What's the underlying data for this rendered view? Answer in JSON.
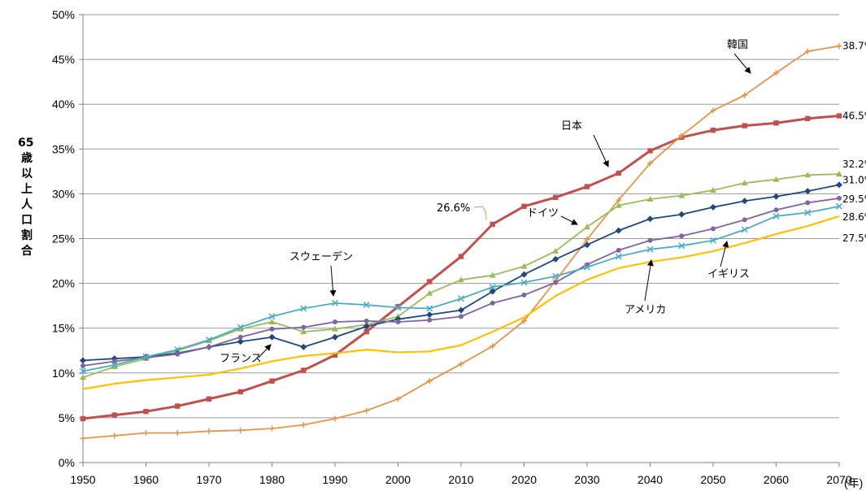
{
  "chart_data": {
    "type": "line",
    "ylabel": "65歳以上人口割合",
    "x_unit": "(年)",
    "x": [
      1950,
      1955,
      1960,
      1965,
      1970,
      1975,
      1980,
      1985,
      1990,
      1995,
      2000,
      2005,
      2010,
      2015,
      2020,
      2025,
      2030,
      2035,
      2040,
      2045,
      2050,
      2055,
      2060,
      2065,
      2070
    ],
    "x_ticks": [
      "1950",
      "1960",
      "1970",
      "1980",
      "1990",
      "2000",
      "2010",
      "2020",
      "2030",
      "2040",
      "2050",
      "2060",
      "2070"
    ],
    "y_ticks": [
      "0%",
      "5%",
      "10%",
      "15%",
      "20%",
      "25%",
      "30%",
      "35%",
      "40%",
      "45%",
      "50%"
    ],
    "ylim": [
      0,
      50
    ],
    "grid": true,
    "series": [
      {
        "name": "日本",
        "color": "#c0504d",
        "marker": "square",
        "values": [
          4.9,
          5.3,
          5.7,
          6.3,
          7.1,
          7.9,
          9.1,
          10.3,
          12.0,
          14.6,
          17.4,
          20.2,
          23.0,
          26.6,
          28.6,
          29.6,
          30.8,
          32.3,
          34.8,
          36.3,
          37.1,
          37.6,
          37.9,
          38.4,
          38.7
        ]
      },
      {
        "name": "韓国",
        "color": "#e5954a",
        "marker": "plus",
        "values": [
          2.7,
          3.0,
          3.3,
          3.3,
          3.5,
          3.6,
          3.8,
          4.2,
          4.9,
          5.8,
          7.1,
          9.1,
          11.0,
          13.0,
          15.8,
          20.3,
          24.9,
          29.3,
          33.4,
          36.5,
          39.3,
          41.0,
          43.5,
          45.9,
          46.5
        ]
      },
      {
        "name": "ドイツ",
        "color": "#9bbb59",
        "marker": "triangle",
        "values": [
          9.5,
          10.7,
          11.6,
          12.5,
          13.6,
          14.9,
          15.7,
          14.6,
          14.9,
          15.4,
          16.3,
          18.9,
          20.4,
          20.9,
          21.9,
          23.6,
          26.3,
          28.7,
          29.4,
          29.8,
          30.4,
          31.2,
          31.6,
          32.1,
          32.2
        ]
      },
      {
        "name": "",
        "color": "#1f497d",
        "marker": "diamond",
        "values": [
          11.4,
          11.6,
          11.8,
          12.2,
          12.9,
          13.5,
          14.0,
          12.9,
          14.0,
          15.2,
          16.0,
          16.5,
          17.0,
          19.1,
          21.0,
          22.7,
          24.3,
          25.9,
          27.2,
          27.7,
          28.5,
          29.2,
          29.7,
          30.3,
          31.0
        ]
      },
      {
        "name": "",
        "color": "#8064a2",
        "marker": "circle",
        "values": [
          10.8,
          11.3,
          11.7,
          12.1,
          12.9,
          14.0,
          14.9,
          15.1,
          15.7,
          15.8,
          15.7,
          15.9,
          16.3,
          17.8,
          18.7,
          20.1,
          22.1,
          23.7,
          24.8,
          25.3,
          26.1,
          27.1,
          28.2,
          29.0,
          29.5
        ]
      },
      {
        "name": "スウェーデン",
        "color": "#4bacc6",
        "marker": "x",
        "values": [
          10.2,
          10.9,
          11.8,
          12.6,
          13.7,
          15.1,
          16.3,
          17.2,
          17.8,
          17.6,
          17.3,
          17.2,
          18.3,
          19.6,
          20.1,
          20.8,
          21.8,
          23.0,
          23.8,
          24.2,
          24.8,
          26.0,
          27.5,
          27.9,
          28.6
        ]
      },
      {
        "name": "アメリカ",
        "color": "#ffc000",
        "marker": "none",
        "values": [
          8.2,
          8.8,
          9.2,
          9.5,
          9.8,
          10.5,
          11.3,
          11.9,
          12.2,
          12.6,
          12.3,
          12.4,
          13.1,
          14.6,
          16.2,
          18.6,
          20.4,
          21.7,
          22.4,
          22.9,
          23.6,
          24.5,
          25.5,
          26.4,
          27.5
        ]
      }
    ],
    "end_labels": [
      "46.5%",
      "38.7%",
      "32.2%",
      "31.0%",
      "29.5%",
      "28.6%",
      "27.5%"
    ],
    "annotations": {
      "korea": "韓国",
      "japan": "日本",
      "japan_2015": "26.6%",
      "germany": "ドイツ",
      "sweden": "スウェーデン",
      "france": "フランス",
      "uk": "イギリス",
      "usa": "アメリカ"
    }
  }
}
